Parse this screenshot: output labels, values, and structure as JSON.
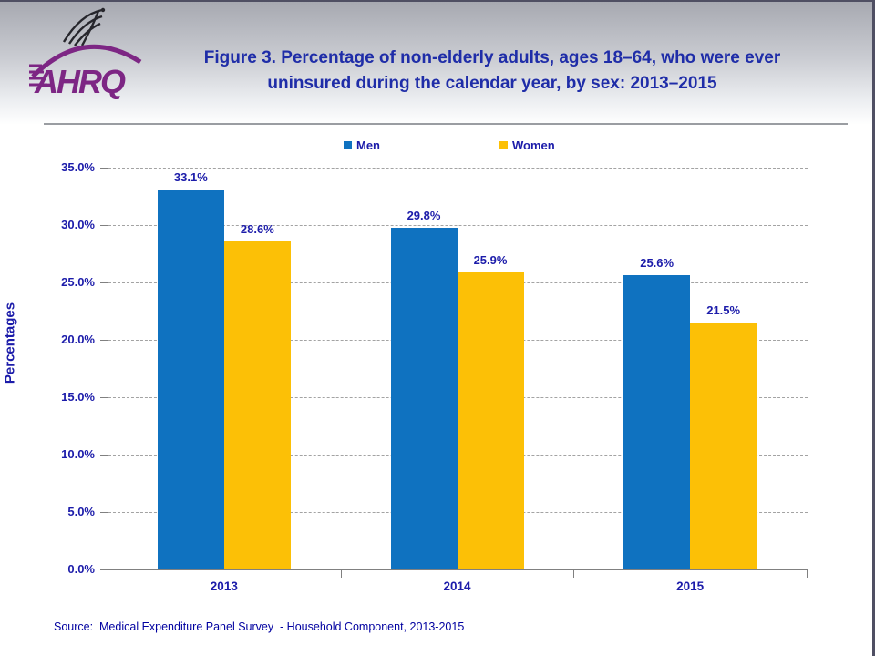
{
  "header": {
    "logo_org": "AHRQ",
    "title_line1": "Figure 3. Percentage of non-elderly adults, ages 18–64, who were ever",
    "title_line2": "uninsured during the calendar year, by sex: 2013–2015",
    "title_color": "#1f2da8"
  },
  "legend": {
    "items": [
      {
        "label": "Men",
        "color": "#0f72c0"
      },
      {
        "label": "Women",
        "color": "#fcc006"
      }
    ]
  },
  "chart_data": {
    "type": "bar",
    "categories": [
      "2013",
      "2014",
      "2015"
    ],
    "series": [
      {
        "name": "Men",
        "color": "#0f72c0",
        "values": [
          33.1,
          29.8,
          25.6
        ]
      },
      {
        "name": "Women",
        "color": "#fcc006",
        "values": [
          28.6,
          25.9,
          21.5
        ]
      }
    ],
    "data_labels": {
      "Men": [
        "33.1%",
        "29.8%",
        "25.6%"
      ],
      "Women": [
        "28.6%",
        "25.9%",
        "21.5%"
      ]
    },
    "title": "Figure 3. Percentage of non-elderly adults, ages 18–64, who were ever uninsured during the calendar year, by sex: 2013–2015",
    "xlabel": "",
    "ylabel": "Percentages",
    "ylim": [
      0,
      35
    ],
    "ytick_step": 5,
    "ytick_suffix": "%",
    "grid": true,
    "legend_position": "top"
  },
  "colors": {
    "axis_line": "#808080",
    "grid_line": "#a3a3a3",
    "label_text": "#1c1caa",
    "logo_purple": "#7d2684",
    "eagle_dark": "#26262c"
  },
  "footer": {
    "source": "Source:  Medical Expenditure Panel Survey  - Household Component, 2013-2015"
  }
}
